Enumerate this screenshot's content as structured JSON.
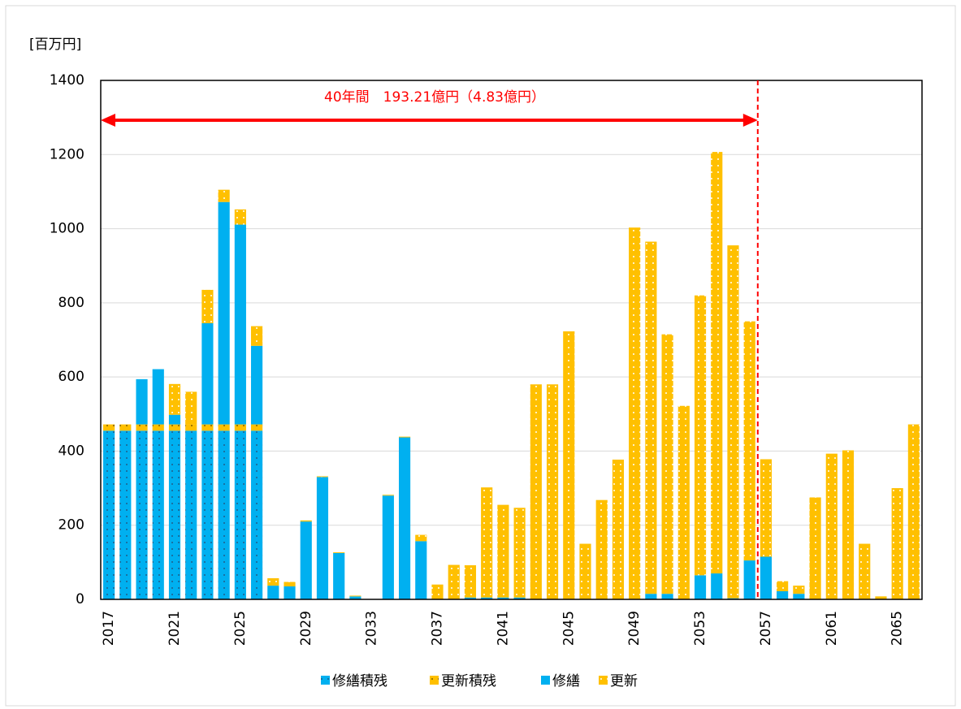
{
  "chart_data": {
    "type": "bar",
    "stacked": true,
    "y_label": "[百万円]",
    "annotation": "40年間　193.21億円（4.83億円）",
    "categories": [
      "2017",
      null,
      null,
      null,
      "2021",
      null,
      null,
      null,
      "2025",
      null,
      null,
      null,
      "2029",
      null,
      null,
      null,
      "2033",
      null,
      null,
      null,
      "2037",
      null,
      null,
      null,
      "2041",
      null,
      null,
      null,
      "2045",
      null,
      null,
      null,
      "2049",
      null,
      null,
      null,
      "2053",
      null,
      null,
      null,
      "2057",
      null,
      null,
      null,
      "2061",
      null,
      null,
      null,
      "2065",
      null
    ],
    "series": [
      {
        "name": "修繕積残",
        "color": "#00b0f0",
        "values": [
          455,
          455,
          455,
          455,
          455,
          455,
          455,
          455,
          455,
          455,
          0,
          0,
          0,
          0,
          0,
          0,
          0,
          0,
          0,
          0,
          0,
          0,
          0,
          0,
          0,
          0,
          0,
          0,
          0,
          0,
          0,
          0,
          0,
          0,
          0,
          0,
          0,
          0,
          0,
          0,
          0,
          0,
          0,
          0,
          0,
          0,
          0,
          0,
          0,
          0
        ]
      },
      {
        "name": "更新積残",
        "color": "#ffc000",
        "values": [
          17,
          17,
          17,
          17,
          17,
          17,
          17,
          17,
          17,
          17,
          0,
          0,
          0,
          0,
          0,
          0,
          0,
          0,
          0,
          0,
          0,
          0,
          0,
          0,
          0,
          0,
          0,
          0,
          0,
          0,
          0,
          0,
          0,
          0,
          0,
          0,
          0,
          0,
          0,
          0,
          0,
          0,
          0,
          0,
          0,
          0,
          0,
          0,
          0,
          0
        ]
      },
      {
        "name": "修繕",
        "color": "#00b0f0",
        "values": [
          0,
          0,
          122,
          149,
          26,
          0,
          273,
          600,
          539,
          212,
          37,
          35,
          210,
          330,
          125,
          8,
          0,
          280,
          437,
          157,
          0,
          0,
          5,
          5,
          5,
          5,
          0,
          0,
          0,
          0,
          0,
          0,
          0,
          15,
          15,
          0,
          65,
          70,
          3,
          105,
          115,
          22,
          15,
          0,
          0,
          0,
          0,
          0,
          0,
          0
        ]
      },
      {
        "name": "更新",
        "color": "#ffc000",
        "values": [
          0,
          0,
          0,
          0,
          83,
          88,
          90,
          33,
          41,
          53,
          20,
          12,
          3,
          2,
          2,
          2,
          0,
          2,
          2,
          17,
          40,
          93,
          87,
          297,
          250,
          242,
          580,
          580,
          723,
          150,
          268,
          377,
          1003,
          950,
          700,
          522,
          755,
          1137,
          952,
          645,
          263,
          27,
          22,
          275,
          393,
          402,
          150,
          8,
          300,
          472
        ]
      }
    ],
    "ylim": [
      0,
      1400
    ],
    "yticks": [
      0,
      200,
      400,
      600,
      800,
      1000,
      1200,
      1400
    ],
    "grid": true
  }
}
